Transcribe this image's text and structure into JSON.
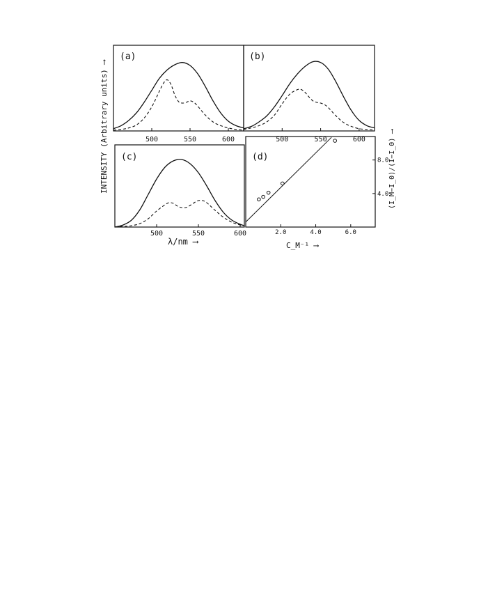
{
  "figure": {
    "ylabel_left": "INTENSITY (Arbitrary units) ⟶",
    "xlabel_bottom": "λ/nm ⟶"
  },
  "chart_data": [
    {
      "panel": "(a)",
      "type": "line",
      "xlim": [
        450,
        620
      ],
      "ylim": [
        0,
        1
      ],
      "xticks": [
        "500",
        "550",
        "600"
      ],
      "series": [
        {
          "style": "solid",
          "x": [
            450,
            460,
            470,
            480,
            490,
            500,
            510,
            520,
            530,
            540,
            550,
            560,
            570,
            580,
            590,
            600,
            610,
            620
          ],
          "y": [
            0.03,
            0.07,
            0.14,
            0.24,
            0.38,
            0.54,
            0.7,
            0.81,
            0.88,
            0.91,
            0.87,
            0.76,
            0.59,
            0.4,
            0.24,
            0.13,
            0.07,
            0.04
          ]
        },
        {
          "style": "dashed",
          "x": [
            450,
            460,
            470,
            480,
            490,
            500,
            510,
            515,
            520,
            525,
            530,
            535,
            540,
            545,
            550,
            555,
            560,
            570,
            580,
            590,
            600,
            610,
            620
          ],
          "y": [
            0.01,
            0.02,
            0.04,
            0.08,
            0.17,
            0.32,
            0.53,
            0.63,
            0.68,
            0.62,
            0.48,
            0.39,
            0.37,
            0.38,
            0.4,
            0.38,
            0.33,
            0.21,
            0.12,
            0.07,
            0.04,
            0.02,
            0.01
          ]
        }
      ]
    },
    {
      "panel": "(b)",
      "type": "line",
      "xlim": [
        450,
        620
      ],
      "ylim": [
        0,
        1
      ],
      "xticks": [
        "500",
        "550",
        "600"
      ],
      "series": [
        {
          "style": "solid",
          "x": [
            450,
            460,
            470,
            480,
            490,
            500,
            510,
            520,
            530,
            540,
            550,
            560,
            570,
            580,
            590,
            600,
            610,
            620
          ],
          "y": [
            0.03,
            0.06,
            0.12,
            0.2,
            0.32,
            0.47,
            0.63,
            0.76,
            0.86,
            0.92,
            0.91,
            0.82,
            0.65,
            0.45,
            0.27,
            0.14,
            0.07,
            0.04
          ]
        },
        {
          "style": "dashed",
          "x": [
            450,
            460,
            470,
            480,
            490,
            500,
            510,
            520,
            525,
            530,
            535,
            540,
            545,
            550,
            555,
            560,
            570,
            580,
            590,
            600,
            610,
            620
          ],
          "y": [
            0.02,
            0.04,
            0.07,
            0.12,
            0.21,
            0.36,
            0.49,
            0.55,
            0.55,
            0.51,
            0.45,
            0.4,
            0.38,
            0.37,
            0.35,
            0.31,
            0.2,
            0.11,
            0.06,
            0.03,
            0.02,
            0.01
          ]
        }
      ]
    },
    {
      "panel": "(c)",
      "type": "line",
      "xlim": [
        450,
        605
      ],
      "ylim": [
        0,
        1
      ],
      "xticks": [
        "500",
        "550",
        "600"
      ],
      "series": [
        {
          "style": "solid",
          "x": [
            450,
            460,
            470,
            480,
            490,
            500,
            510,
            520,
            530,
            540,
            550,
            560,
            570,
            580,
            590,
            600,
            605
          ],
          "y": [
            0.0,
            0.03,
            0.1,
            0.25,
            0.47,
            0.69,
            0.86,
            0.95,
            0.97,
            0.91,
            0.78,
            0.59,
            0.38,
            0.21,
            0.1,
            0.04,
            0.02
          ]
        },
        {
          "style": "dashed",
          "x": [
            450,
            460,
            470,
            480,
            490,
            500,
            510,
            515,
            520,
            525,
            530,
            535,
            540,
            545,
            550,
            555,
            560,
            570,
            580,
            590,
            600,
            605
          ],
          "y": [
            0.0,
            0.01,
            0.02,
            0.05,
            0.12,
            0.23,
            0.32,
            0.35,
            0.34,
            0.3,
            0.28,
            0.28,
            0.31,
            0.35,
            0.38,
            0.38,
            0.35,
            0.24,
            0.14,
            0.07,
            0.03,
            0.02
          ]
        }
      ]
    },
    {
      "panel": "(d)",
      "type": "scatter",
      "xlim": [
        0,
        7.4
      ],
      "ylim": [
        0,
        10.8
      ],
      "xticks": [
        "2.0",
        "4.0",
        "6.0"
      ],
      "yticks": [
        "4.0",
        "8.0"
      ],
      "xlabel": "C_M⁻¹ ⟶",
      "ylabel": "(I_M−I_0)/(I−I_0) ⟶",
      "points": [
        {
          "x": 0.75,
          "y": 3.3
        },
        {
          "x": 1.0,
          "y": 3.6
        },
        {
          "x": 1.3,
          "y": 4.1
        },
        {
          "x": 2.1,
          "y": 5.2
        },
        {
          "x": 5.1,
          "y": 10.3
        }
      ],
      "fit_line": {
        "x": [
          0,
          4.9
        ],
        "y": [
          0.6,
          10.7
        ]
      }
    }
  ]
}
